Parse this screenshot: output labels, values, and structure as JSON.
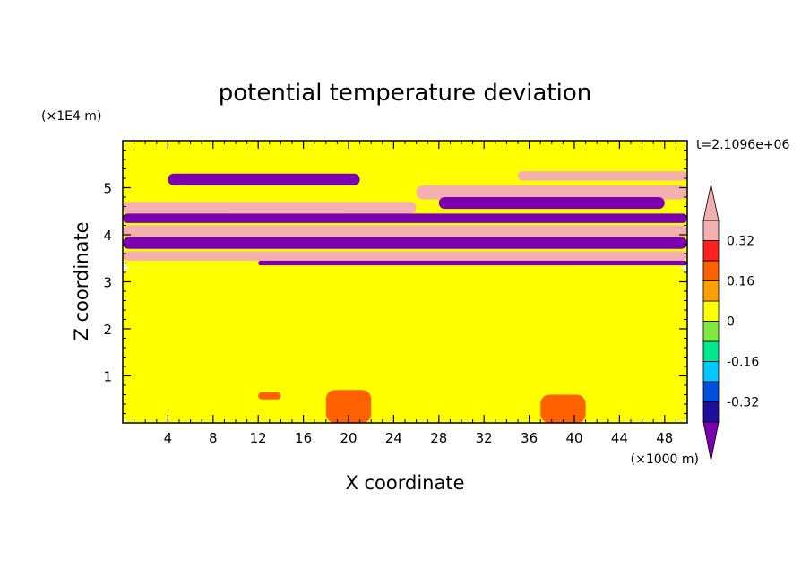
{
  "chart_data": {
    "type": "heatmap",
    "title": "potential temperature deviation",
    "xlabel": "X coordinate",
    "ylabel": "Z coordinate",
    "x_unit": "(×1000 m)",
    "y_unit": "(×1E4 m)",
    "time_label": "t=2.1096e+06",
    "x_ticks": [
      "4",
      "8",
      "12",
      "16",
      "20",
      "24",
      "28",
      "32",
      "36",
      "40",
      "44",
      "48"
    ],
    "y_ticks": [
      "1",
      "2",
      "3",
      "4",
      "5"
    ],
    "xlim": [
      0,
      50
    ],
    "ylim": [
      0,
      6
    ],
    "colorbar": {
      "levels": [
        -0.4,
        -0.32,
        -0.24,
        -0.16,
        -0.08,
        0,
        0.08,
        0.16,
        0.24,
        0.32,
        0.4
      ],
      "tick_labels": [
        "0.32",
        "0.16",
        "0",
        "-0.16",
        "-0.32"
      ],
      "tick_values": [
        0.32,
        0.16,
        0,
        -0.16,
        -0.32
      ],
      "colors": [
        "#7b00b0",
        "#1c0fa0",
        "#0050e0",
        "#00c8ff",
        "#00e890",
        "#80e840",
        "#ffff00",
        "#ffa000",
        "#ff6000",
        "#ff2020",
        "#f4b0b0"
      ],
      "extend": "both"
    },
    "bands": [
      {
        "x0": 0,
        "x1": 50,
        "y0": 0,
        "y1": 3.3,
        "value": 0.03
      },
      {
        "x0": 0,
        "x1": 50,
        "y0": 3.3,
        "y1": 6,
        "value": 0.04
      },
      {
        "x0": 0,
        "x1": 50,
        "y0": 5.35,
        "y1": 5.55,
        "value": 0.0
      },
      {
        "x0": 4,
        "x1": 21,
        "y0": 5.05,
        "y1": 5.3,
        "value": -0.42
      },
      {
        "x0": 35,
        "x1": 50,
        "y0": 5.15,
        "y1": 5.35,
        "value": 0.42
      },
      {
        "x0": 26,
        "x1": 50,
        "y0": 4.75,
        "y1": 5.05,
        "value": 0.42
      },
      {
        "x0": 0,
        "x1": 26,
        "y0": 4.45,
        "y1": 4.7,
        "value": 0.42
      },
      {
        "x0": 28,
        "x1": 48,
        "y0": 4.55,
        "y1": 4.8,
        "value": -0.42
      },
      {
        "x0": 0,
        "x1": 50,
        "y0": 4.25,
        "y1": 4.45,
        "value": -0.42
      },
      {
        "x0": 0,
        "x1": 50,
        "y0": 3.95,
        "y1": 4.2,
        "value": 0.42
      },
      {
        "x0": 0,
        "x1": 50,
        "y0": 3.7,
        "y1": 3.95,
        "value": -0.42
      },
      {
        "x0": 0,
        "x1": 50,
        "y0": 3.45,
        "y1": 3.65,
        "value": 0.42
      },
      {
        "x0": 12,
        "x1": 50,
        "y0": 3.35,
        "y1": 3.45,
        "value": -0.42
      },
      {
        "x0": 18,
        "x1": 22,
        "y0": 0,
        "y1": 0.7,
        "value": 0.2
      },
      {
        "x0": 37,
        "x1": 41,
        "y0": 0,
        "y1": 0.6,
        "value": 0.2
      },
      {
        "x0": 12,
        "x1": 14,
        "y0": 0.5,
        "y1": 0.65,
        "value": 0.16
      }
    ]
  }
}
